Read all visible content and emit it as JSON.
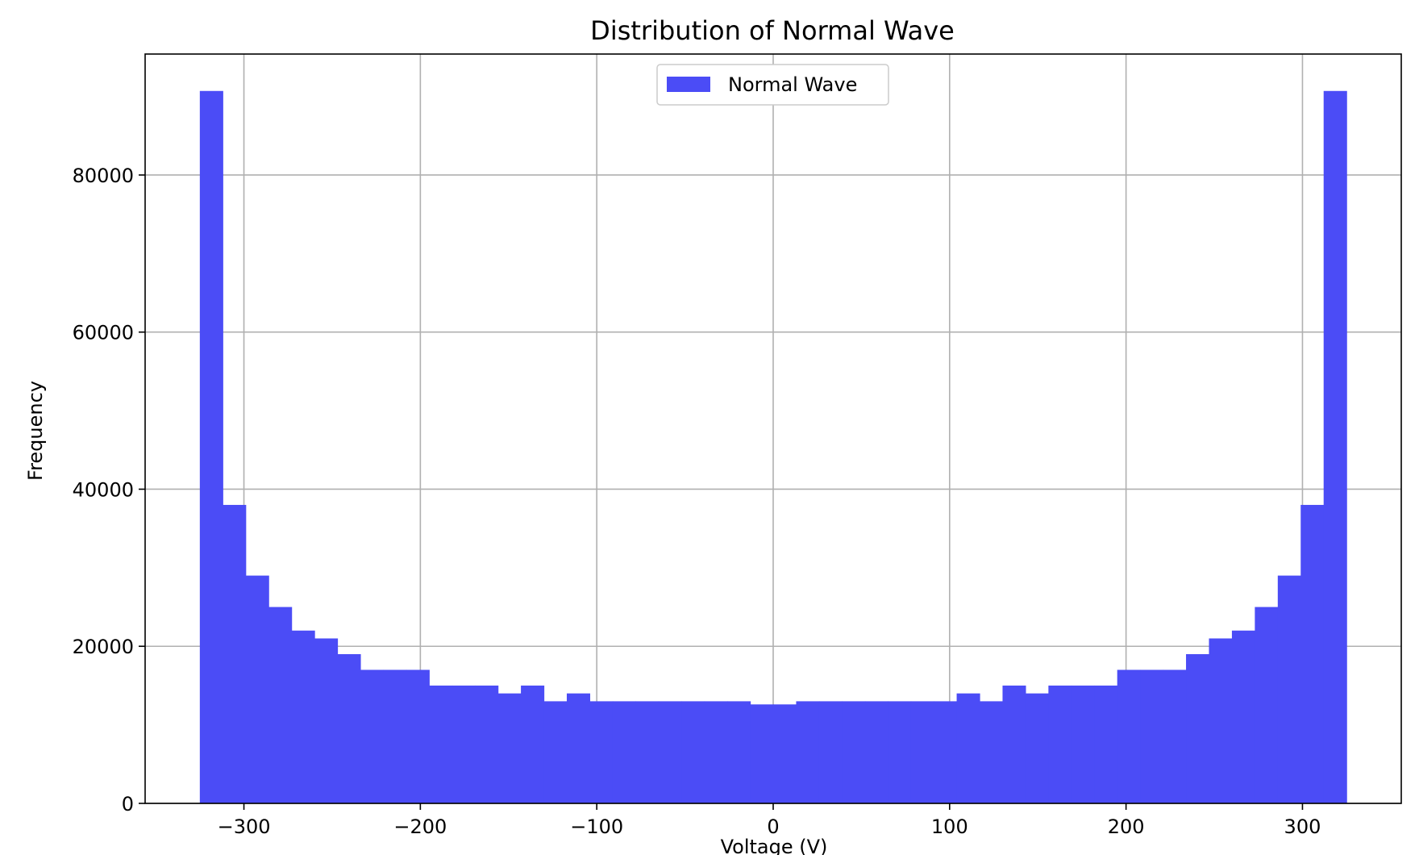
{
  "chart_data": {
    "type": "bar",
    "title": "Distribution of Normal Wave",
    "xlabel": "Voltage (V)",
    "ylabel": "Frequency",
    "xlim": [
      -356,
      356
    ],
    "ylim": [
      0,
      95400
    ],
    "bin_range": [
      -325,
      325
    ],
    "grid": true,
    "legend": {
      "position": "top-center",
      "entries": [
        "Normal Wave"
      ]
    },
    "series": [
      {
        "name": "Normal Wave",
        "color": "#4b4cf6",
        "values": [
          90700,
          38000,
          29000,
          25000,
          22000,
          21000,
          19000,
          17000,
          17000,
          17000,
          15000,
          15000,
          15000,
          14000,
          15000,
          13000,
          14000,
          13000,
          13000,
          13000,
          13000,
          13000,
          13000,
          13000,
          12600,
          12600,
          13000,
          13000,
          13000,
          13000,
          13000,
          13000,
          13000,
          14000,
          13000,
          15000,
          14000,
          15000,
          15000,
          15000,
          17000,
          17000,
          17000,
          19000,
          21000,
          22000,
          25000,
          29000,
          38000,
          90700
        ]
      }
    ],
    "x_ticks": [
      {
        "value": -300,
        "label": "−300"
      },
      {
        "value": -200,
        "label": "−200"
      },
      {
        "value": -100,
        "label": "−100"
      },
      {
        "value": 0,
        "label": "0"
      },
      {
        "value": 100,
        "label": "100"
      },
      {
        "value": 200,
        "label": "200"
      },
      {
        "value": 300,
        "label": "300"
      }
    ],
    "y_ticks": [
      {
        "value": 0,
        "label": "0"
      },
      {
        "value": 20000,
        "label": "20000"
      },
      {
        "value": 40000,
        "label": "40000"
      },
      {
        "value": 60000,
        "label": "60000"
      },
      {
        "value": 80000,
        "label": "80000"
      }
    ]
  }
}
